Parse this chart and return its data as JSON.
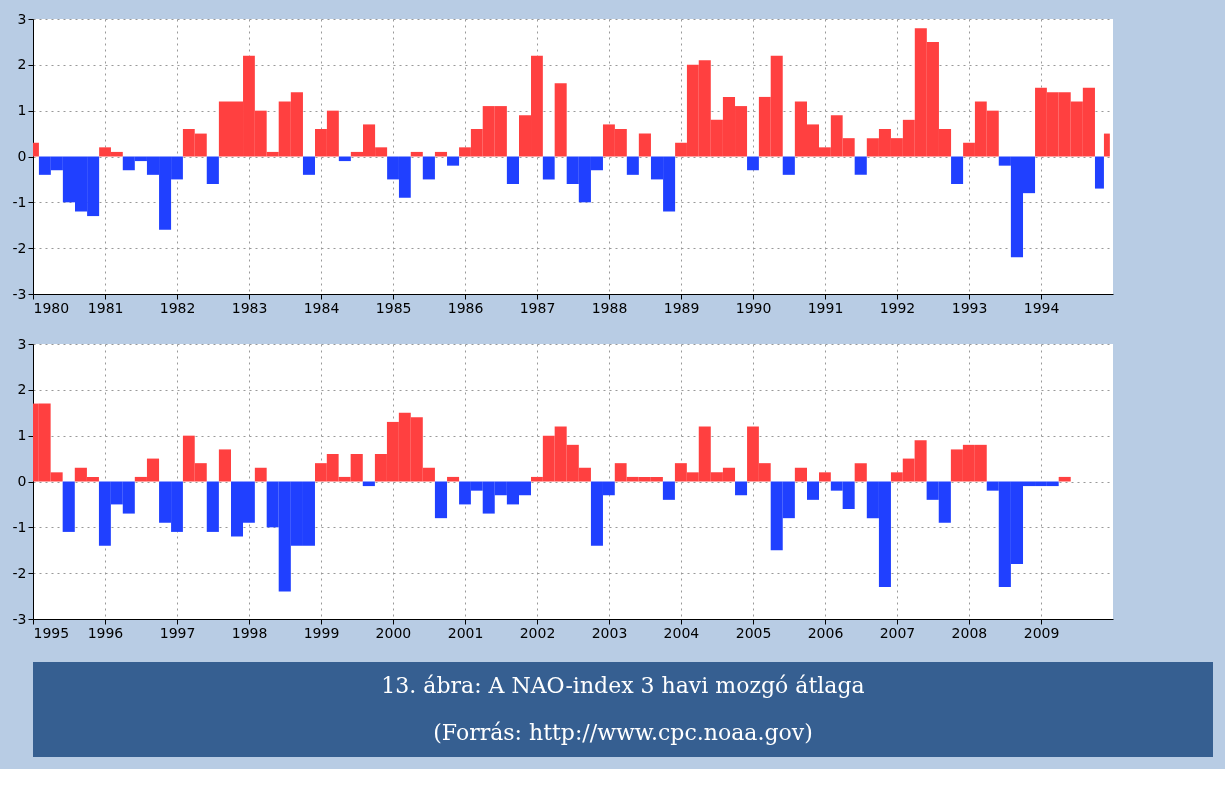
{
  "chart_data": [
    {
      "type": "bar",
      "x": [
        "1980-01",
        "1980-03",
        "1980-05",
        "1980-07",
        "1980-09",
        "1980-11",
        "1981-01",
        "1981-03",
        "1981-05",
        "1981-07",
        "1981-09",
        "1981-11",
        "1982-01",
        "1982-03",
        "1982-05",
        "1982-07",
        "1982-09",
        "1982-11",
        "1983-01",
        "1983-03",
        "1983-05",
        "1983-07",
        "1983-09",
        "1983-11",
        "1984-01",
        "1984-03",
        "1984-05",
        "1984-07",
        "1984-09",
        "1984-11",
        "1985-01",
        "1985-03",
        "1985-05",
        "1985-07",
        "1985-09",
        "1985-11",
        "1986-01",
        "1986-03",
        "1986-05",
        "1986-07",
        "1986-09",
        "1986-11",
        "1987-01",
        "1987-03",
        "1987-05",
        "1987-07",
        "1987-09",
        "1987-11",
        "1988-01",
        "1988-03",
        "1988-05",
        "1988-07",
        "1988-09",
        "1988-11",
        "1989-01",
        "1989-03",
        "1989-05",
        "1989-07",
        "1989-09",
        "1989-11",
        "1990-01",
        "1990-03",
        "1990-05",
        "1990-07",
        "1990-09",
        "1990-11",
        "1991-01",
        "1991-03",
        "1991-05",
        "1991-07",
        "1991-09",
        "1991-11",
        "1992-01",
        "1992-03",
        "1992-05",
        "1992-07",
        "1992-09",
        "1992-11",
        "1993-01",
        "1993-03",
        "1993-05",
        "1993-07",
        "1993-09",
        "1993-11",
        "1994-01",
        "1994-03",
        "1994-05",
        "1994-07",
        "1994-09",
        "1994-11",
        "1994-12"
      ],
      "values": [
        0.3,
        -0.4,
        -0.3,
        -1.0,
        -1.2,
        -1.3,
        0.2,
        0.1,
        -0.3,
        -0.1,
        -0.4,
        -1.6,
        -0.5,
        0.6,
        0.5,
        -0.6,
        1.2,
        1.2,
        2.2,
        1.0,
        0.1,
        1.2,
        1.4,
        -0.4,
        0.6,
        1.0,
        -0.1,
        0.1,
        0.7,
        0.2,
        -0.5,
        -0.9,
        0.1,
        -0.5,
        0.1,
        -0.2,
        0.2,
        0.6,
        1.1,
        1.1,
        -0.6,
        0.9,
        2.2,
        -0.5,
        1.6,
        -0.6,
        -1.0,
        -0.3,
        0.7,
        0.6,
        -0.4,
        0.5,
        -0.5,
        -1.2,
        0.3,
        2.0,
        2.1,
        0.8,
        1.3,
        1.1,
        -0.3,
        1.3,
        2.2,
        -0.4,
        1.2,
        0.7,
        0.2,
        0.9,
        0.4,
        -0.4,
        0.4,
        0.6,
        0.4,
        0.8,
        2.8,
        2.5,
        0.6,
        -0.6,
        0.3,
        1.2,
        1.0,
        -0.2,
        -2.2,
        -0.8,
        1.5,
        1.4,
        1.4,
        1.2,
        1.5,
        -0.7,
        0.5
      ],
      "colors": [
        "#ff4040",
        "#2040ff",
        "#2040ff",
        "#2040ff",
        "#2040ff",
        "#2040ff",
        "#ff4040",
        "#ff4040",
        "#2040ff",
        "#2040ff",
        "#2040ff",
        "#2040ff",
        "#2040ff",
        "#ff4040",
        "#ff4040",
        "#2040ff",
        "#ff4040",
        "#ff4040",
        "#ff4040",
        "#ff4040",
        "#ff4040",
        "#ff4040",
        "#ff4040",
        "#2040ff",
        "#ff4040",
        "#ff4040",
        "#2040ff",
        "#ff4040",
        "#ff4040",
        "#ff4040",
        "#2040ff",
        "#2040ff",
        "#ff4040",
        "#2040ff",
        "#ff4040",
        "#2040ff",
        "#ff4040",
        "#ff4040",
        "#ff4040",
        "#ff4040",
        "#2040ff",
        "#ff4040",
        "#ff4040",
        "#2040ff",
        "#ff4040",
        "#2040ff",
        "#2040ff",
        "#2040ff",
        "#ff4040",
        "#ff4040",
        "#2040ff",
        "#ff4040",
        "#2040ff",
        "#2040ff",
        "#ff4040",
        "#ff4040",
        "#ff4040",
        "#ff4040",
        "#ff4040",
        "#ff4040",
        "#2040ff",
        "#ff4040",
        "#ff4040",
        "#2040ff",
        "#ff4040",
        "#ff4040",
        "#ff4040",
        "#ff4040",
        "#ff4040",
        "#2040ff",
        "#ff4040",
        "#ff4040",
        "#ff4040",
        "#ff4040",
        "#ff4040",
        "#ff4040",
        "#ff4040",
        "#2040ff",
        "#ff4040",
        "#ff4040",
        "#ff4040",
        "#2040ff",
        "#2040ff",
        "#2040ff",
        "#ff4040",
        "#ff4040",
        "#ff4040",
        "#ff4040",
        "#ff4040",
        "#2040ff",
        "#ff4040"
      ],
      "xlim": [
        "1980-01",
        "1995-01"
      ],
      "xticks": [
        {
          "value": "1980",
          "label": "1980"
        },
        {
          "value": "1981",
          "label": "1981"
        },
        {
          "value": "1982",
          "label": "1982"
        },
        {
          "value": "1983",
          "label": "1983"
        },
        {
          "value": "1984",
          "label": "1984"
        },
        {
          "value": "1985",
          "label": "1985"
        },
        {
          "value": "1986",
          "label": "1986"
        },
        {
          "value": "1987",
          "label": "1987"
        },
        {
          "value": "1988",
          "label": "1988"
        },
        {
          "value": "1989",
          "label": "1989"
        },
        {
          "value": "1990",
          "label": "1990"
        },
        {
          "value": "1991",
          "label": "1991"
        },
        {
          "value": "1992",
          "label": "1992"
        },
        {
          "value": "1993",
          "label": "1993"
        },
        {
          "value": "1994",
          "label": "1994"
        }
      ],
      "ylim": [
        -3,
        3
      ],
      "yticks": [
        -3,
        -2,
        -1,
        0,
        1,
        2,
        3
      ],
      "grid": true
    },
    {
      "type": "bar",
      "x": [
        "1995-01",
        "1995-03",
        "1995-05",
        "1995-07",
        "1995-09",
        "1995-11",
        "1996-01",
        "1996-03",
        "1996-05",
        "1996-07",
        "1996-09",
        "1996-11",
        "1997-01",
        "1997-03",
        "1997-05",
        "1997-07",
        "1997-09",
        "1997-11",
        "1998-01",
        "1998-03",
        "1998-05",
        "1998-07",
        "1998-09",
        "1998-11",
        "1999-01",
        "1999-03",
        "1999-05",
        "1999-07",
        "1999-09",
        "1999-11",
        "2000-01",
        "2000-03",
        "2000-05",
        "2000-07",
        "2000-09",
        "2000-11",
        "2001-01",
        "2001-03",
        "2001-05",
        "2001-07",
        "2001-09",
        "2001-11",
        "2002-01",
        "2002-03",
        "2002-05",
        "2002-07",
        "2002-09",
        "2002-11",
        "2003-01",
        "2003-03",
        "2003-05",
        "2003-07",
        "2003-09",
        "2003-11",
        "2004-01",
        "2004-03",
        "2004-05",
        "2004-07",
        "2004-09",
        "2004-11",
        "2005-01",
        "2005-03",
        "2005-05",
        "2005-07",
        "2005-09",
        "2005-11",
        "2006-01",
        "2006-03",
        "2006-05",
        "2006-07",
        "2006-09",
        "2006-11",
        "2007-01",
        "2007-03",
        "2007-05",
        "2007-07",
        "2007-09",
        "2007-11",
        "2008-01",
        "2008-03",
        "2008-05",
        "2008-07",
        "2008-09",
        "2008-11",
        "2009-01",
        "2009-03",
        "2009-05"
      ],
      "values": [
        1.7,
        1.7,
        0.2,
        -1.1,
        0.3,
        0.1,
        -1.4,
        -0.5,
        -0.7,
        0.1,
        0.5,
        -0.9,
        -1.1,
        1.0,
        0.4,
        -1.1,
        0.7,
        -1.2,
        -0.9,
        0.3,
        -1.0,
        -2.4,
        -1.4,
        -1.4,
        0.4,
        0.6,
        0.1,
        0.6,
        -0.1,
        0.6,
        1.3,
        1.5,
        1.4,
        0.3,
        -0.8,
        0.1,
        -0.5,
        -0.2,
        -0.7,
        -0.3,
        -0.5,
        -0.3,
        0.1,
        1.0,
        1.2,
        0.8,
        0.3,
        -1.4,
        -0.3,
        0.4,
        0.1,
        0.1,
        0.1,
        -0.4,
        0.4,
        0.2,
        1.2,
        0.2,
        0.3,
        -0.3,
        1.2,
        0.4,
        -1.5,
        -0.8,
        0.3,
        -0.4,
        0.2,
        -0.2,
        -0.6,
        0.4,
        -0.8,
        -2.3,
        0.2,
        0.5,
        0.9,
        -0.4,
        -0.9,
        0.7,
        0.8,
        0.8,
        -0.2,
        -2.3,
        -1.8,
        -0.1,
        -0.1,
        -0.1,
        0.1
      ],
      "colors": [
        "#ff4040",
        "#ff4040",
        "#ff4040",
        "#2040ff",
        "#ff4040",
        "#ff4040",
        "#2040ff",
        "#2040ff",
        "#2040ff",
        "#ff4040",
        "#ff4040",
        "#2040ff",
        "#2040ff",
        "#ff4040",
        "#ff4040",
        "#2040ff",
        "#ff4040",
        "#2040ff",
        "#2040ff",
        "#ff4040",
        "#2040ff",
        "#2040ff",
        "#2040ff",
        "#2040ff",
        "#ff4040",
        "#ff4040",
        "#ff4040",
        "#ff4040",
        "#2040ff",
        "#ff4040",
        "#ff4040",
        "#ff4040",
        "#ff4040",
        "#ff4040",
        "#2040ff",
        "#ff4040",
        "#2040ff",
        "#2040ff",
        "#2040ff",
        "#2040ff",
        "#2040ff",
        "#2040ff",
        "#ff4040",
        "#ff4040",
        "#ff4040",
        "#ff4040",
        "#ff4040",
        "#2040ff",
        "#2040ff",
        "#ff4040",
        "#ff4040",
        "#ff4040",
        "#ff4040",
        "#2040ff",
        "#ff4040",
        "#ff4040",
        "#ff4040",
        "#ff4040",
        "#ff4040",
        "#2040ff",
        "#ff4040",
        "#ff4040",
        "#2040ff",
        "#2040ff",
        "#ff4040",
        "#2040ff",
        "#ff4040",
        "#2040ff",
        "#2040ff",
        "#ff4040",
        "#2040ff",
        "#2040ff",
        "#ff4040",
        "#ff4040",
        "#ff4040",
        "#2040ff",
        "#2040ff",
        "#ff4040",
        "#ff4040",
        "#ff4040",
        "#2040ff",
        "#2040ff",
        "#2040ff",
        "#2040ff",
        "#2040ff",
        "#2040ff",
        "#ff4040"
      ],
      "xlim": [
        "1995-01",
        "2010-01"
      ],
      "xticks": [
        {
          "value": "1995",
          "label": "1995"
        },
        {
          "value": "1996",
          "label": "1996"
        },
        {
          "value": "1997",
          "label": "1997"
        },
        {
          "value": "1998",
          "label": "1998"
        },
        {
          "value": "1999",
          "label": "1999"
        },
        {
          "value": "2000",
          "label": "2000"
        },
        {
          "value": "2001",
          "label": "2001"
        },
        {
          "value": "2002",
          "label": "2002"
        },
        {
          "value": "2003",
          "label": "2003"
        },
        {
          "value": "2004",
          "label": "2004"
        },
        {
          "value": "2005",
          "label": "2005"
        },
        {
          "value": "2006",
          "label": "2006"
        },
        {
          "value": "2007",
          "label": "2007"
        },
        {
          "value": "2008",
          "label": "2008"
        },
        {
          "value": "2009",
          "label": "2009"
        }
      ],
      "ylim": [
        -3,
        3
      ],
      "yticks": [
        -3,
        -2,
        -1,
        0,
        1,
        2,
        3
      ],
      "grid": true,
      "annotations": [
        "13. ábra: A NAO-index 3 havi mozgó átlaga",
        "(Forrás: http://www.cpc.noaa.gov)"
      ]
    }
  ]
}
